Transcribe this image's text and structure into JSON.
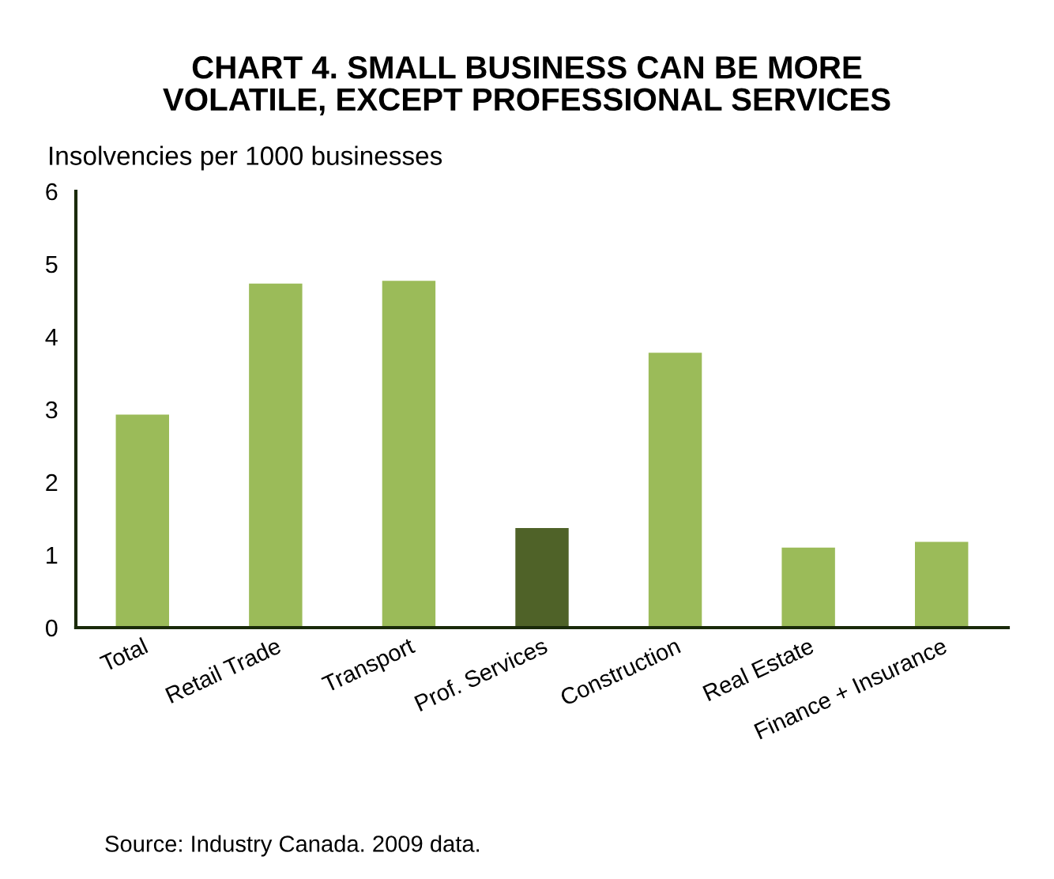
{
  "chart_data": {
    "type": "bar",
    "title": "CHART 4. SMALL BUSINESS CAN BE MORE\nVOLATILE, EXCEPT PROFESSIONAL SERVICES",
    "ylabel": "Insolvencies per 1000 businesses",
    "categories": [
      "Total",
      "Retail Trade",
      "Transport",
      "Prof. Services",
      "Construction",
      "Real Estate",
      "Finance + Insurance"
    ],
    "values": [
      2.93,
      4.73,
      4.77,
      1.37,
      3.78,
      1.1,
      1.18
    ],
    "colors": [
      "#9bbb59",
      "#9bbb59",
      "#9bbb59",
      "#4f6228",
      "#9bbb59",
      "#9bbb59",
      "#9bbb59"
    ],
    "ylim": [
      0,
      6
    ],
    "yticks": [
      0,
      1,
      2,
      3,
      4,
      5,
      6
    ],
    "grid": false,
    "annotations": [
      "Source: Industry Canada. 2009 data."
    ]
  }
}
